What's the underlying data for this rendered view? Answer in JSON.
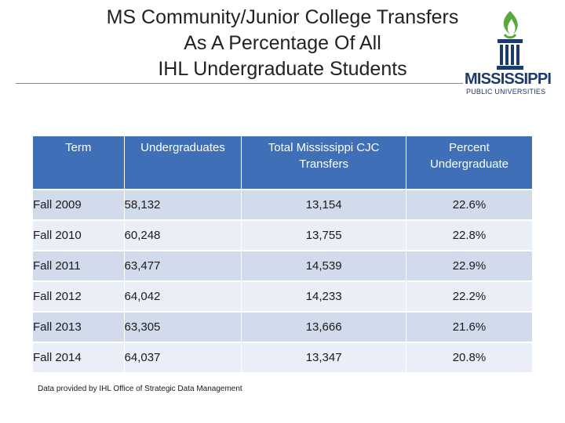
{
  "title": {
    "line1": "MS Community/Junior College Transfers",
    "line2": "As A Percentage Of All",
    "line3": "IHL Undergraduate Students"
  },
  "logo": {
    "word": "MISSISSIPPI",
    "sub": "PUBLIC UNIVERSITIES",
    "colors": {
      "flame": "#5aa83c",
      "column": "#1c3a6b"
    }
  },
  "table": {
    "headers": [
      "Term",
      "Undergraduates",
      "Total Mississippi CJC Transfers",
      "Percent Undergraduate"
    ],
    "rows": [
      [
        "Fall 2009",
        "58,132",
        "13,154",
        "22.6%"
      ],
      [
        "Fall 2010",
        "60,248",
        "13,755",
        "22.8%"
      ],
      [
        "Fall 2011",
        "63,477",
        "14,539",
        "22.9%"
      ],
      [
        "Fall 2012",
        "64,042",
        "14,233",
        "22.2%"
      ],
      [
        "Fall 2013",
        "63,305",
        "13,666",
        "21.6%"
      ],
      [
        "Fall 2014",
        "64,037",
        "13,347",
        "20.8%"
      ]
    ]
  },
  "colors": {
    "header": "#3f6fb6",
    "row_a": "#d2dbec",
    "row_b": "#eaeef6"
  },
  "footnote": "Data provided by IHL Office of Strategic Data Management"
}
